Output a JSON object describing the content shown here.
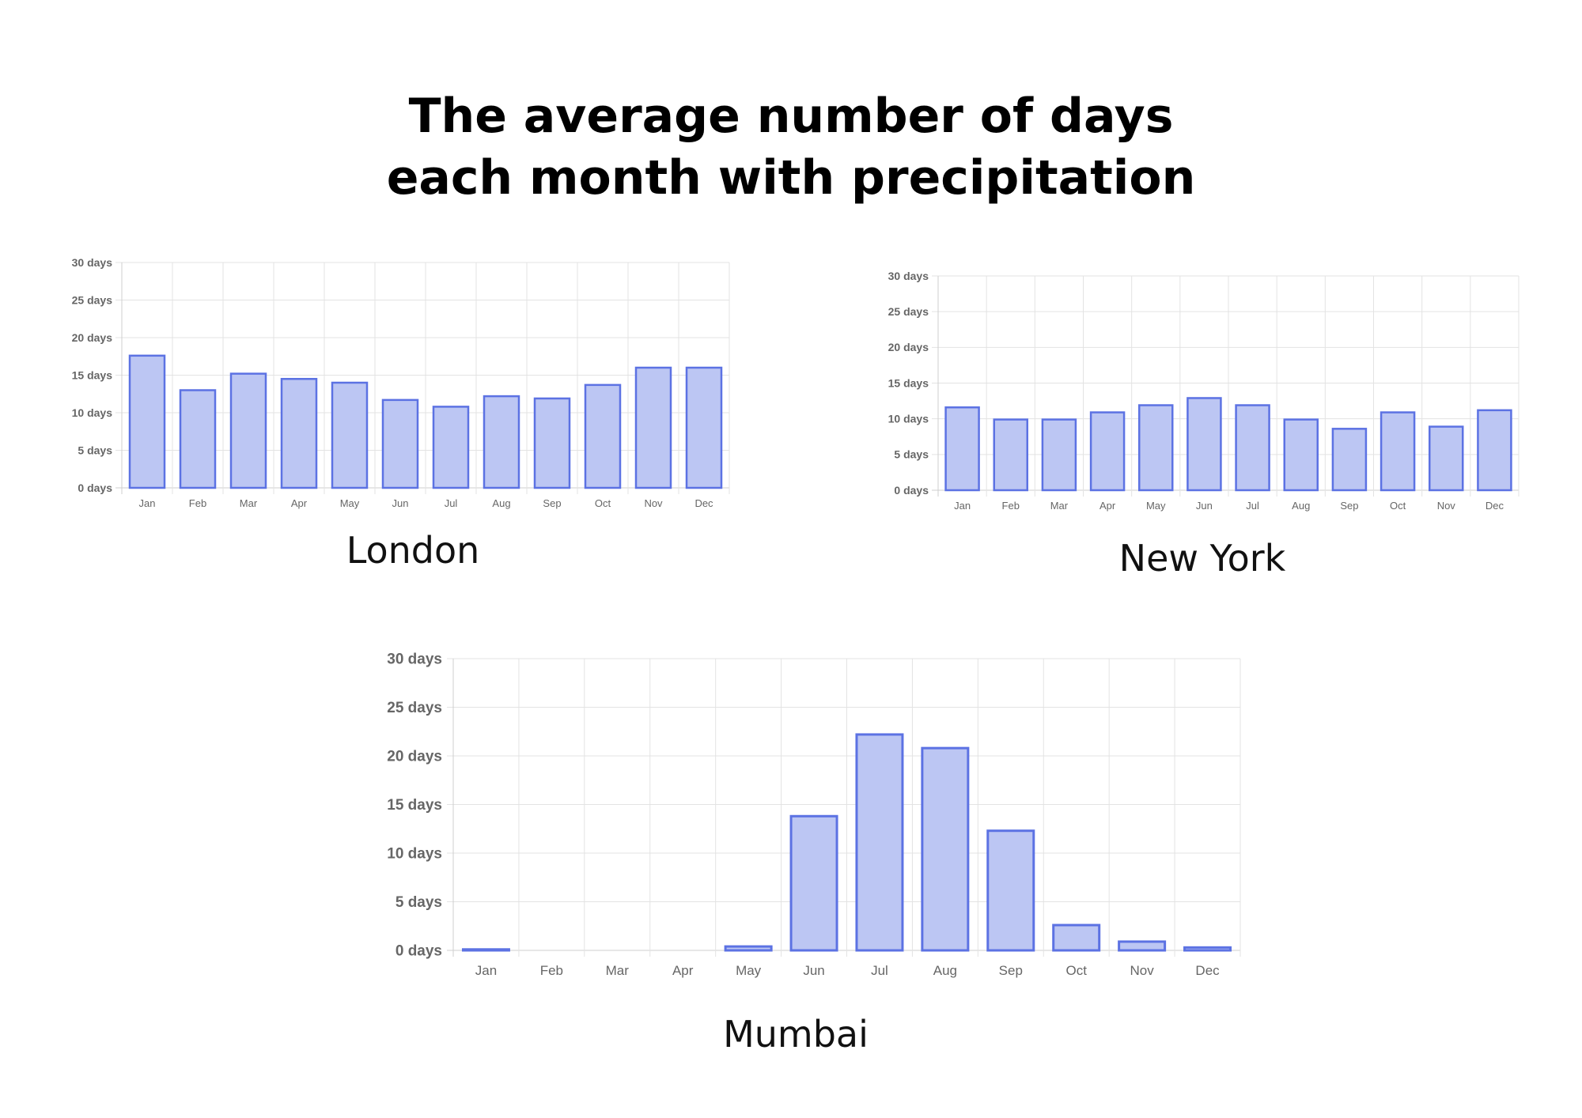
{
  "title": {
    "line1": "The average number of days",
    "line2": "each month with precipitation"
  },
  "colors": {
    "bar_fill": "#bcc6f3",
    "bar_stroke": "#5c72e3",
    "grid": "#e3e3e3",
    "axis_line": "#cfcfcf",
    "tick_text": "#666666"
  },
  "chart_data": [
    {
      "type": "bar",
      "city": "London",
      "categories": [
        "Jan",
        "Feb",
        "Mar",
        "Apr",
        "May",
        "Jun",
        "Jul",
        "Aug",
        "Sep",
        "Oct",
        "Nov",
        "Dec"
      ],
      "values": [
        17.6,
        13.0,
        15.2,
        14.5,
        14.0,
        11.7,
        10.8,
        12.2,
        11.9,
        13.7,
        16.0,
        16.0
      ],
      "yticks": [
        "0 days",
        "5 days",
        "10 days",
        "15 days",
        "20 days",
        "25 days",
        "30 days"
      ],
      "ylim": [
        0,
        30
      ],
      "grid": true
    },
    {
      "type": "bar",
      "city": "New York",
      "categories": [
        "Jan",
        "Feb",
        "Mar",
        "Apr",
        "May",
        "Jun",
        "Jul",
        "Aug",
        "Sep",
        "Oct",
        "Nov",
        "Dec"
      ],
      "values": [
        11.6,
        9.9,
        9.9,
        10.9,
        11.9,
        12.9,
        11.9,
        9.9,
        8.6,
        10.9,
        8.9,
        11.2
      ],
      "yticks": [
        "0 days",
        "5 days",
        "10 days",
        "15 days",
        "20 days",
        "25 days",
        "30 days"
      ],
      "ylim": [
        0,
        30
      ],
      "grid": true
    },
    {
      "type": "bar",
      "city": "Mumbai",
      "categories": [
        "Jan",
        "Feb",
        "Mar",
        "Apr",
        "May",
        "Jun",
        "Jul",
        "Aug",
        "Sep",
        "Oct",
        "Nov",
        "Dec"
      ],
      "values": [
        0.1,
        0,
        0,
        0,
        0.4,
        13.8,
        22.2,
        20.8,
        12.3,
        2.6,
        0.9,
        0.3
      ],
      "yticks": [
        "0 days",
        "5 days",
        "10 days",
        "15 days",
        "20 days",
        "25 days",
        "30 days"
      ],
      "ylim": [
        0,
        30
      ],
      "grid": true
    }
  ]
}
